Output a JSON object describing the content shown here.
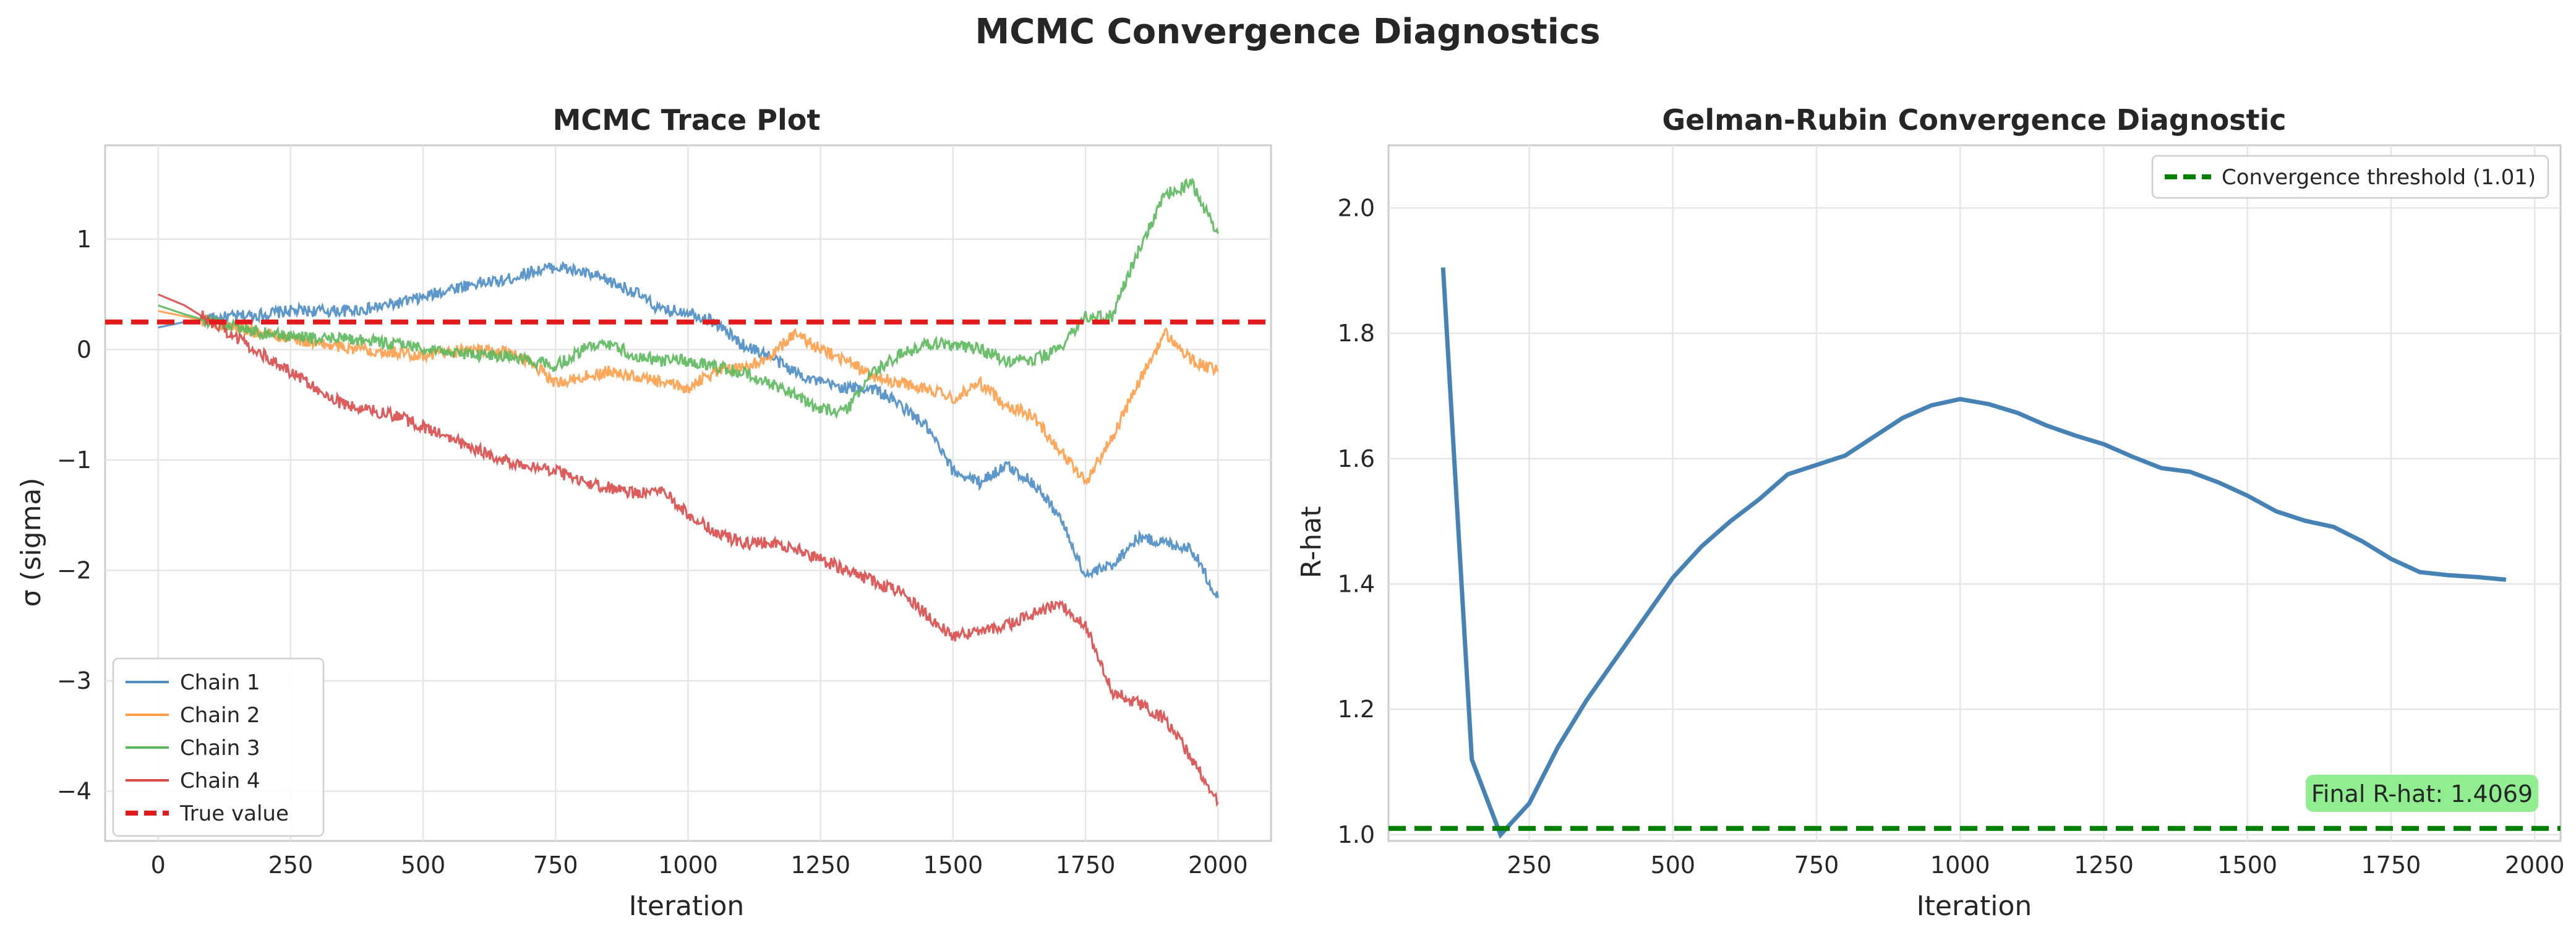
{
  "figure": {
    "title": "MCMC Convergence Diagnostics"
  },
  "chart_data": [
    {
      "type": "line",
      "title": "MCMC Trace Plot",
      "xlabel": "Iteration",
      "ylabel": "σ (sigma)",
      "xlim": [
        -100,
        2100
      ],
      "ylim": [
        -4.45,
        1.85
      ],
      "xticks": [
        0,
        250,
        500,
        750,
        1000,
        1250,
        1500,
        1750,
        2000
      ],
      "yticks": [
        -4,
        -3,
        -2,
        -1,
        0,
        1
      ],
      "ytick_labels": [
        "−4",
        "−3",
        "−2",
        "−1",
        "0",
        "1"
      ],
      "grid": true,
      "legend": "lower-left",
      "series": [
        {
          "name": "Chain 1",
          "color": "#4c8dc4",
          "x": [
            0,
            50,
            100,
            150,
            200,
            250,
            300,
            350,
            400,
            450,
            500,
            550,
            600,
            650,
            700,
            750,
            800,
            850,
            900,
            950,
            1000,
            1050,
            1100,
            1150,
            1200,
            1250,
            1300,
            1350,
            1400,
            1450,
            1500,
            1550,
            1600,
            1650,
            1700,
            1750,
            1800,
            1850,
            1900,
            1950,
            2000
          ],
          "y": [
            0.2,
            0.25,
            0.28,
            0.3,
            0.32,
            0.35,
            0.35,
            0.35,
            0.37,
            0.42,
            0.47,
            0.55,
            0.6,
            0.62,
            0.7,
            0.75,
            0.7,
            0.62,
            0.52,
            0.35,
            0.35,
            0.25,
            0.05,
            -0.05,
            -0.2,
            -0.3,
            -0.35,
            -0.35,
            -0.5,
            -0.7,
            -1.1,
            -1.2,
            -1.05,
            -1.2,
            -1.5,
            -2.05,
            -1.95,
            -1.7,
            -1.75,
            -1.8,
            -2.25
          ]
        },
        {
          "name": "Chain 2",
          "color": "#ff9e4a",
          "x": [
            0,
            50,
            100,
            150,
            200,
            250,
            300,
            350,
            400,
            450,
            500,
            550,
            600,
            650,
            700,
            750,
            800,
            850,
            900,
            950,
            1000,
            1050,
            1100,
            1150,
            1200,
            1250,
            1300,
            1350,
            1400,
            1450,
            1500,
            1550,
            1600,
            1650,
            1700,
            1750,
            1800,
            1850,
            1900,
            1950,
            2000
          ],
          "y": [
            0.35,
            0.3,
            0.25,
            0.2,
            0.15,
            0.1,
            0.05,
            0.02,
            0.0,
            -0.02,
            -0.05,
            -0.02,
            0.0,
            -0.02,
            -0.1,
            -0.3,
            -0.25,
            -0.2,
            -0.25,
            -0.3,
            -0.35,
            -0.2,
            -0.15,
            -0.1,
            0.15,
            0.0,
            -0.1,
            -0.25,
            -0.3,
            -0.35,
            -0.45,
            -0.3,
            -0.5,
            -0.6,
            -0.9,
            -1.2,
            -0.8,
            -0.3,
            0.15,
            -0.1,
            -0.2
          ]
        },
        {
          "name": "Chain 3",
          "color": "#5cb85c",
          "x": [
            0,
            50,
            100,
            150,
            200,
            250,
            300,
            350,
            400,
            450,
            500,
            550,
            600,
            650,
            700,
            750,
            800,
            850,
            900,
            950,
            1000,
            1050,
            1100,
            1150,
            1200,
            1250,
            1300,
            1350,
            1400,
            1450,
            1500,
            1550,
            1600,
            1650,
            1700,
            1750,
            1800,
            1850,
            1900,
            1950,
            2000
          ],
          "y": [
            0.4,
            0.32,
            0.25,
            0.2,
            0.15,
            0.12,
            0.1,
            0.1,
            0.08,
            0.05,
            0.02,
            -0.02,
            -0.05,
            -0.05,
            -0.1,
            -0.15,
            0.0,
            0.05,
            -0.05,
            -0.1,
            -0.1,
            -0.15,
            -0.2,
            -0.3,
            -0.4,
            -0.55,
            -0.55,
            -0.2,
            -0.05,
            0.05,
            0.05,
            0.0,
            -0.1,
            -0.1,
            0.0,
            0.3,
            0.3,
            0.9,
            1.4,
            1.5,
            1.05
          ]
        },
        {
          "name": "Chain 4",
          "color": "#d94a4a",
          "x": [
            0,
            50,
            100,
            150,
            200,
            250,
            300,
            350,
            400,
            450,
            500,
            550,
            600,
            650,
            700,
            750,
            800,
            850,
            900,
            950,
            1000,
            1050,
            1100,
            1150,
            1200,
            1250,
            1300,
            1350,
            1400,
            1450,
            1500,
            1550,
            1600,
            1650,
            1700,
            1750,
            1800,
            1850,
            1900,
            1950,
            2000
          ],
          "y": [
            0.5,
            0.4,
            0.25,
            0.1,
            -0.05,
            -0.2,
            -0.35,
            -0.5,
            -0.55,
            -0.6,
            -0.7,
            -0.8,
            -0.9,
            -1.0,
            -1.05,
            -1.1,
            -1.2,
            -1.25,
            -1.3,
            -1.25,
            -1.5,
            -1.65,
            -1.75,
            -1.75,
            -1.8,
            -1.9,
            -2.0,
            -2.1,
            -2.2,
            -2.4,
            -2.6,
            -2.55,
            -2.5,
            -2.4,
            -2.3,
            -2.5,
            -3.1,
            -3.2,
            -3.35,
            -3.7,
            -4.1
          ]
        }
      ],
      "reference_line": {
        "name": "True value",
        "y": 0.25,
        "color": "#e31a1c",
        "style": "dashed"
      }
    },
    {
      "type": "line",
      "title": "Gelman-Rubin Convergence Diagnostic",
      "xlabel": "Iteration",
      "ylabel": "R-hat",
      "xlim": [
        5,
        2045
      ],
      "ylim": [
        0.99,
        2.1
      ],
      "xticks": [
        250,
        500,
        750,
        1000,
        1250,
        1500,
        1750,
        2000
      ],
      "yticks": [
        1.0,
        1.2,
        1.4,
        1.6,
        1.8,
        2.0
      ],
      "ytick_labels": [
        "1.0",
        "1.2",
        "1.4",
        "1.6",
        "1.8",
        "2.0"
      ],
      "grid": true,
      "legend": "top-right",
      "series": [
        {
          "name": "",
          "color": "#4682b4",
          "x": [
            100,
            150,
            200,
            250,
            300,
            350,
            400,
            450,
            500,
            550,
            600,
            650,
            700,
            750,
            800,
            850,
            900,
            950,
            1000,
            1050,
            1100,
            1150,
            1200,
            1250,
            1300,
            1350,
            1400,
            1450,
            1500,
            1550,
            1600,
            1650,
            1700,
            1750,
            1800,
            1850,
            1900,
            1950
          ],
          "y": [
            1.905,
            1.12,
            1.0,
            1.05,
            1.14,
            1.215,
            1.28,
            1.345,
            1.41,
            1.46,
            1.5,
            1.535,
            1.575,
            1.59,
            1.605,
            1.635,
            1.665,
            1.685,
            1.695,
            1.687,
            1.673,
            1.653,
            1.637,
            1.623,
            1.603,
            1.585,
            1.579,
            1.562,
            1.541,
            1.516,
            1.501,
            1.491,
            1.468,
            1.44,
            1.419,
            1.414,
            1.411,
            1.4069
          ]
        }
      ],
      "reference_line": {
        "name": "Convergence threshold (1.01)",
        "y": 1.01,
        "color": "#008000",
        "style": "dashed"
      },
      "annotation": {
        "text": "Final R-hat: 1.4069",
        "background": "#90ee90"
      }
    }
  ]
}
